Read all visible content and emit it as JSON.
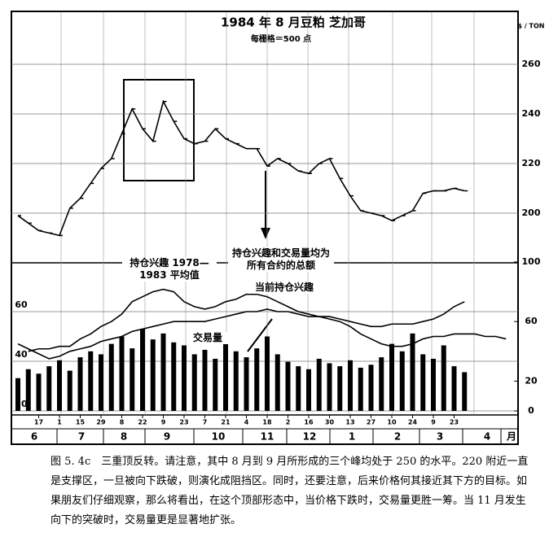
{
  "chart_data": [
    {
      "type": "line",
      "title": "1984 年 8 月豆粕  芝加哥",
      "subtitle": "每栅格＝500 点",
      "y_unit": "$ / TON",
      "color": "#000000",
      "values": [
        199,
        196,
        193,
        192,
        191,
        202,
        206,
        212,
        218,
        222,
        232,
        242,
        234,
        229,
        245,
        237,
        230,
        228,
        229,
        234,
        230,
        228,
        226,
        226,
        219,
        222,
        220,
        217,
        216,
        220,
        222,
        214,
        207,
        201,
        200,
        199,
        197,
        199,
        201,
        208,
        209,
        209,
        210,
        209
      ],
      "ylim": [
        180,
        280
      ],
      "yticks": [
        200,
        220,
        240,
        260
      ],
      "grid": true
    },
    {
      "type": "combo",
      "categories": [
        null,
        null,
        "17",
        null,
        "1",
        null,
        "15",
        null,
        "29",
        null,
        "8",
        null,
        "22",
        null,
        "9",
        null,
        "23",
        null,
        "7",
        null,
        "21",
        null,
        "4",
        null,
        "18",
        null,
        "2",
        null,
        "16",
        null,
        "30",
        null,
        "13",
        null,
        "27",
        null,
        "10",
        null,
        "24",
        null,
        "9",
        null,
        "23",
        null,
        null,
        null,
        null,
        null
      ],
      "series": [
        {
          "name": "当前持仓兴趣",
          "type": "line",
          "color": "#000000",
          "values": [
            null,
            44,
            45,
            45,
            46,
            46,
            49,
            51,
            54,
            56,
            59,
            64,
            66,
            68,
            69,
            68,
            64,
            62,
            61,
            62,
            64,
            65,
            67,
            67,
            66,
            64,
            62,
            60,
            59,
            58,
            58,
            57,
            56,
            55,
            54,
            54,
            55,
            55,
            55,
            56,
            57,
            59,
            62,
            64,
            null,
            null,
            null,
            null
          ]
        },
        {
          "name": "持仓兴趣 1978—1983 平均值",
          "type": "line",
          "color": "#000000",
          "values": [
            47,
            45,
            43,
            41,
            42,
            44,
            45,
            46,
            48,
            49,
            50,
            52,
            53,
            54,
            55,
            56,
            56,
            56,
            56,
            57,
            58,
            59,
            60,
            60,
            61,
            60,
            60,
            59,
            58,
            58,
            57,
            56,
            54,
            51,
            49,
            47,
            46,
            46,
            47,
            49,
            50,
            50,
            51,
            51,
            51,
            50,
            50,
            49
          ]
        },
        {
          "name": "交易量",
          "type": "bar",
          "axis": "y2",
          "color": "#000000",
          "values": [
            22,
            28,
            25,
            30,
            34,
            27,
            36,
            40,
            38,
            45,
            50,
            42,
            55,
            48,
            52,
            46,
            44,
            38,
            41,
            35,
            47,
            40,
            36,
            42,
            50,
            38,
            33,
            30,
            28,
            35,
            32,
            30,
            34,
            29,
            31,
            36,
            45,
            40,
            52,
            38,
            35,
            44,
            30,
            26,
            null,
            null,
            null,
            null
          ]
        }
      ],
      "ylim": [
        20,
        80
      ],
      "yticks": [
        20,
        40,
        60
      ],
      "y2lim": [
        0,
        100
      ],
      "y2ticks": [
        0,
        20,
        60,
        100
      ],
      "grid": true,
      "annotations": [
        "持仓兴趣和交易量均为所有合约的总额"
      ],
      "months": [
        "6",
        "7",
        "8",
        "9",
        "10",
        "11",
        "12",
        "1",
        "2",
        "3",
        "4",
        "月"
      ]
    }
  ],
  "caption": "图 5. 4c　三重顶反转。请注意，其中 8 月到 9 月所形成的三个峰均处于 250 的水平。220 附近一直是支撑区，一旦被向下跌破，则演化成阻挡区。同时，还要注意，后来价格何其接近其下方的目标。如果朋友们仔细观察，那么将看出，在这个顶部形态中，当价格下跌时，交易量更胜一筹。当 11 月发生向下的突破时，交易量更是显著地扩张。"
}
